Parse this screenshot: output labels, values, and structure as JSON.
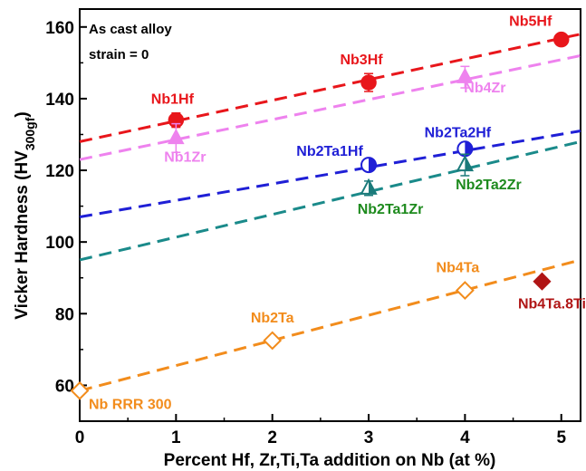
{
  "chart_data": {
    "type": "scatter",
    "xlabel": "Percent Hf, Zr,Ti,Ta addition on Nb (at %)",
    "ylabel_main": "Vicker Hardness (HV",
    "ylabel_sub": "300gf",
    "ylabel_close": ")",
    "xlim": [
      0,
      5.2
    ],
    "ylim": [
      50,
      165
    ],
    "xticks": [
      "0",
      "1",
      "2",
      "3",
      "4",
      "5"
    ],
    "yticks": [
      "60",
      "80",
      "100",
      "120",
      "140",
      "160"
    ],
    "annotations": [
      "As cast alloy",
      "strain = 0"
    ],
    "series": [
      {
        "color": "#e8161b",
        "marker": "circle-filled",
        "line_color": "#e8161b",
        "fit": [
          [
            0,
            128
          ],
          [
            5.2,
            158
          ]
        ],
        "points": [
          {
            "name": "Nb1Hf",
            "x": 1,
            "y": 134,
            "err": 2
          },
          {
            "name": "Nb3Hf",
            "x": 3,
            "y": 144.5,
            "err": 2.5
          },
          {
            "name": "Nb5Hf",
            "x": 5,
            "y": 156.5,
            "err": 1
          }
        ]
      },
      {
        "color": "#ee82ee",
        "marker": "triangle-filled",
        "line_color": "#ee82ee",
        "fit": [
          [
            0,
            123
          ],
          [
            5.2,
            152
          ]
        ],
        "points": [
          {
            "name": "Nb1Zr",
            "x": 1,
            "y": 129,
            "err": 4
          },
          {
            "name": "Nb4Zr",
            "x": 4,
            "y": 146,
            "err": 3
          }
        ]
      },
      {
        "color": "#1f1fd6",
        "marker": "circle-half",
        "line_color": "#1f1fd6",
        "fit": [
          [
            0,
            107
          ],
          [
            5.2,
            131
          ]
        ],
        "points": [
          {
            "name": "Nb2Ta1Hf",
            "x": 3,
            "y": 121.5,
            "err": 1
          },
          {
            "name": "Nb2Ta2Hf",
            "x": 4,
            "y": 126,
            "err": 1
          }
        ]
      },
      {
        "color": "#1a7a7a",
        "marker": "triangle-half",
        "line_color": "#1a8a8a",
        "fit": [
          [
            0,
            95
          ],
          [
            5.2,
            128
          ]
        ],
        "points": [
          {
            "name": "Nb2Ta1Zr",
            "x": 3,
            "y": 115,
            "err": 2
          },
          {
            "name": "Nb2Ta2Zr",
            "x": 4,
            "y": 121.5,
            "err": 3
          }
        ]
      },
      {
        "color": "#f28c1c",
        "marker": "diamond-open",
        "line_color": "#f28c1c",
        "fit": [
          [
            0,
            58.5
          ],
          [
            5.2,
            95
          ]
        ],
        "points": [
          {
            "name": "Nb RRR 300",
            "x": 0,
            "y": 58.5,
            "err": 0
          },
          {
            "name": "Nb2Ta",
            "x": 2,
            "y": 72.5,
            "err": 0
          },
          {
            "name": "Nb4Ta",
            "x": 4,
            "y": 86.5,
            "err": 0
          }
        ]
      },
      {
        "color": "#b01515",
        "marker": "diamond-filled",
        "line_color": "",
        "fit": [],
        "points": [
          {
            "name": "Nb4Ta.8Ti",
            "x": 4.8,
            "y": 89,
            "err": 0
          }
        ]
      }
    ]
  },
  "label_colors": {
    "Nb1Hf": "#e8161b",
    "Nb3Hf": "#e8161b",
    "Nb5Hf": "#e8161b",
    "Nb1Zr": "#ee82ee",
    "Nb4Zr": "#ee82ee",
    "Nb2Ta1Hf": "#1f1fd6",
    "Nb2Ta2Hf": "#1f1fd6",
    "Nb2Ta1Zr": "#1d8a1d",
    "Nb2Ta2Zr": "#1d8a1d",
    "Nb RRR 300": "#f28c1c",
    "Nb2Ta": "#f28c1c",
    "Nb4Ta": "#f28c1c",
    "Nb4Ta.8Ti": "#b01515"
  }
}
